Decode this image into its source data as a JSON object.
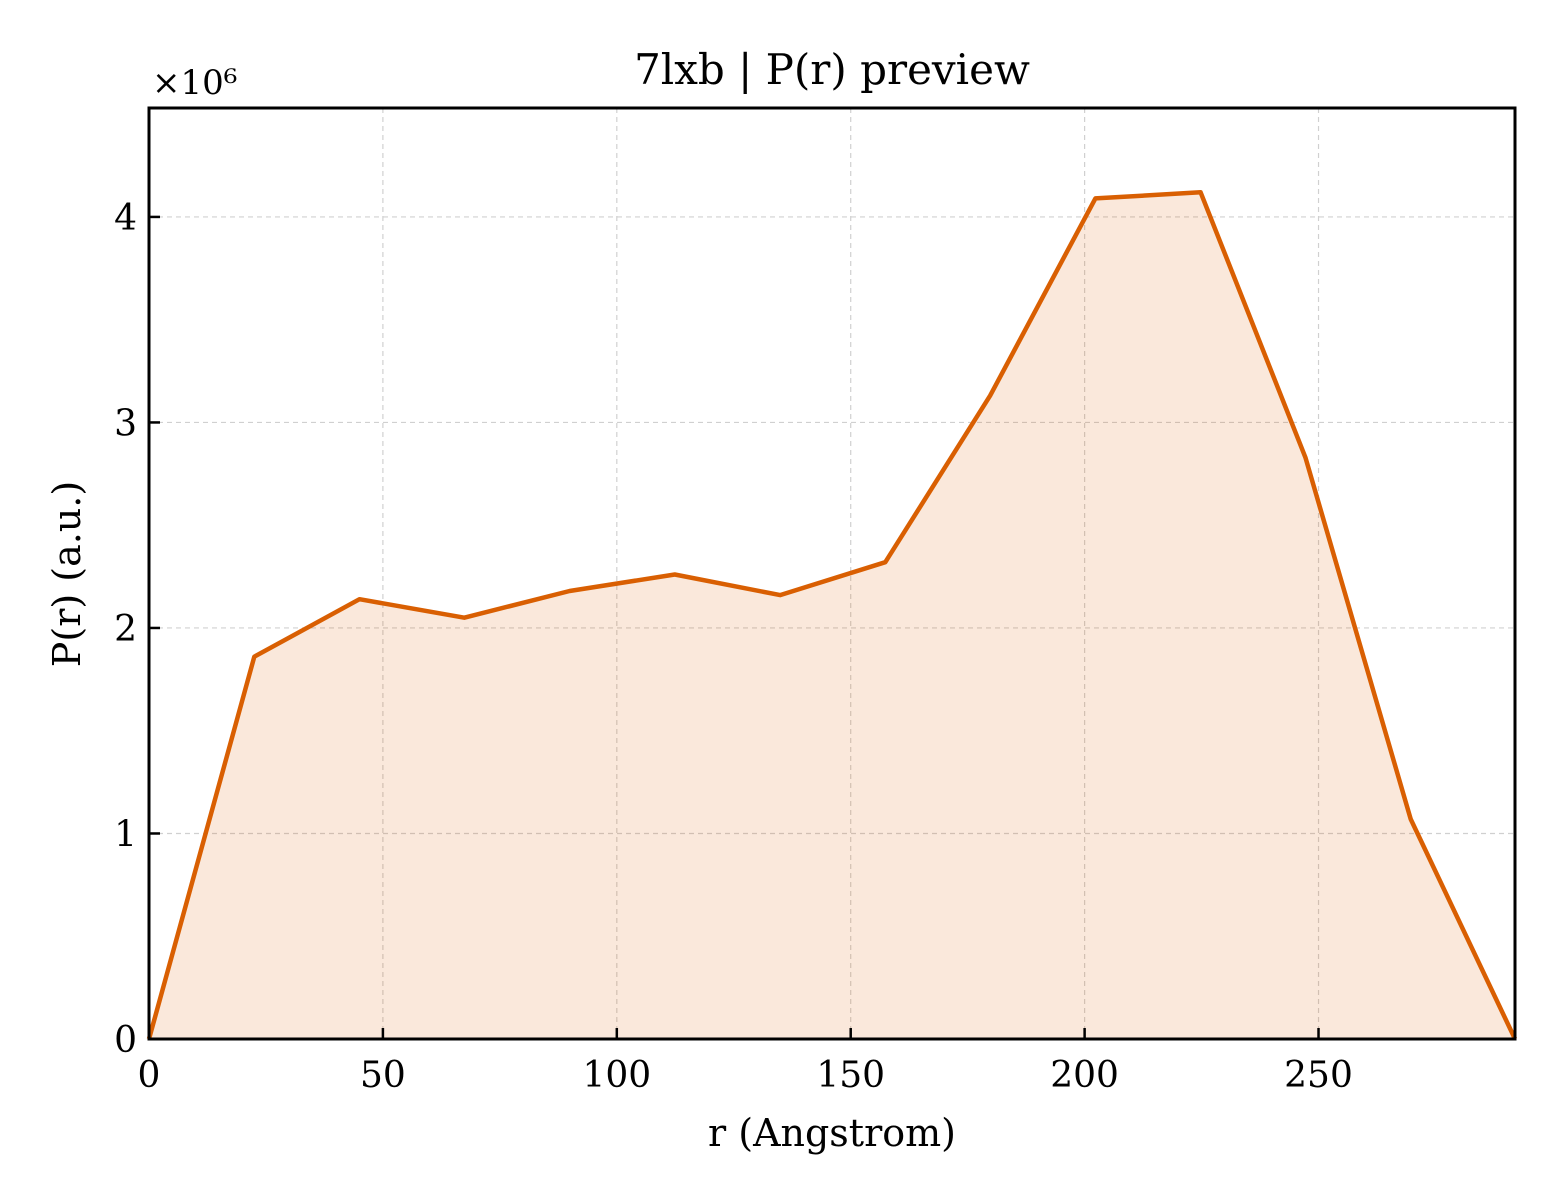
{
  "chart_data": {
    "type": "area",
    "title": "7lxb | P(r) preview",
    "xlabel": "r (Angstrom)",
    "ylabel": "P(r) (a.u.)",
    "y_multiplier_label": "×10⁶",
    "y_scale_factor": 1000000,
    "xlim": [
      0,
      292
    ],
    "ylim": [
      0,
      4.53
    ],
    "x_ticks": [
      0,
      50,
      100,
      150,
      200,
      250
    ],
    "y_ticks": [
      0,
      1,
      2,
      3,
      4
    ],
    "grid": true,
    "x": [
      0,
      22.5,
      45,
      67.4,
      89.9,
      112.4,
      134.9,
      157.4,
      179.8,
      202.3,
      224.8,
      247.2,
      269.7,
      292
    ],
    "series": [
      {
        "values": [
          0,
          1.86,
          2.14,
          2.05,
          2.18,
          2.26,
          2.16,
          2.32,
          3.13,
          4.09,
          4.12,
          2.83,
          1.07,
          0
        ],
        "color": "#d95f02",
        "fill_color": "#d95f02",
        "fill_opacity": 0.14
      }
    ]
  }
}
